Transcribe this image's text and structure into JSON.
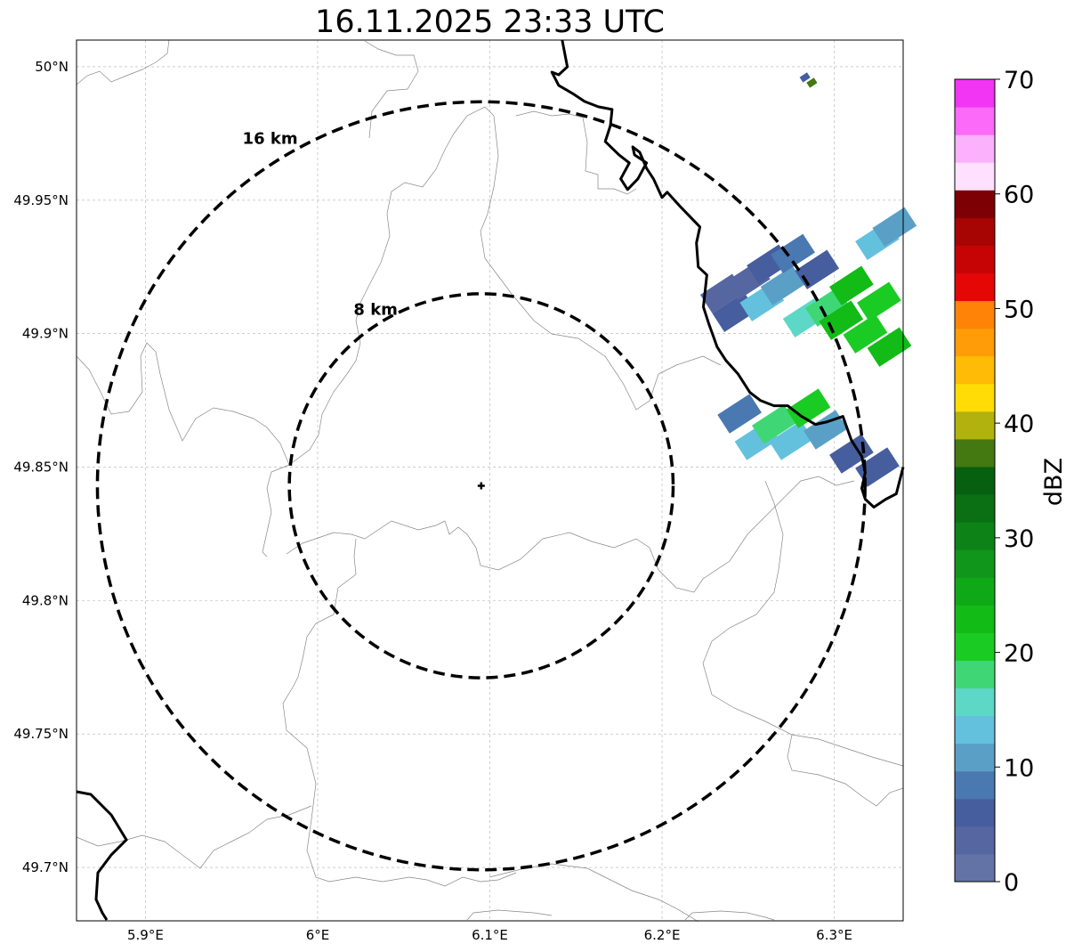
{
  "title": "16.11.2025 23:33 UTC",
  "map": {
    "lon_range": [
      5.86,
      6.34
    ],
    "lat_range": [
      49.68,
      50.01
    ],
    "lon_ticks": [
      {
        "value": 5.9,
        "label": "5.9°E"
      },
      {
        "value": 6.0,
        "label": "6°E"
      },
      {
        "value": 6.1,
        "label": "6.1°E"
      },
      {
        "value": 6.2,
        "label": "6.2°E"
      },
      {
        "value": 6.3,
        "label": "6.3°E"
      }
    ],
    "lat_ticks": [
      {
        "value": 50.0,
        "label": "50°N"
      },
      {
        "value": 49.95,
        "label": "49.95°N"
      },
      {
        "value": 49.9,
        "label": "49.9°N"
      },
      {
        "value": 49.85,
        "label": "49.85°N"
      },
      {
        "value": 49.8,
        "label": "49.8°N"
      },
      {
        "value": 49.75,
        "label": "49.75°N"
      },
      {
        "value": 49.7,
        "label": "49.7°N"
      }
    ],
    "grid": true,
    "radar_site": {
      "lon": 6.095,
      "lat": 49.843
    },
    "range_rings": [
      {
        "radius_km": 8,
        "label": "8 km"
      },
      {
        "radius_km": 16,
        "label": "16 km"
      }
    ],
    "national_border": [
      [
        6.142,
        50.01
      ],
      [
        6.145,
        50.0
      ],
      [
        6.14,
        49.997
      ],
      [
        6.136,
        49.998
      ],
      [
        6.14,
        49.993
      ],
      [
        6.148,
        49.99
      ],
      [
        6.155,
        49.987
      ],
      [
        6.163,
        49.985
      ],
      [
        6.171,
        49.984
      ],
      [
        6.17,
        49.978
      ],
      [
        6.167,
        49.972
      ],
      [
        6.175,
        49.967
      ],
      [
        6.181,
        49.964
      ],
      [
        6.176,
        49.958
      ],
      [
        6.18,
        49.954
      ],
      [
        6.186,
        49.958
      ],
      [
        6.191,
        49.964
      ],
      [
        6.184,
        49.967
      ],
      [
        6.183,
        49.97
      ],
      [
        6.187,
        49.968
      ],
      [
        6.191,
        49.962
      ],
      [
        6.195,
        49.958
      ],
      [
        6.2,
        49.951
      ],
      [
        6.203,
        49.953
      ],
      [
        6.21,
        49.948
      ],
      [
        6.216,
        49.944
      ],
      [
        6.222,
        49.94
      ],
      [
        6.22,
        49.934
      ],
      [
        6.221,
        49.925
      ],
      [
        6.226,
        49.922
      ],
      [
        6.224,
        49.91
      ],
      [
        6.227,
        49.904
      ],
      [
        6.232,
        49.895
      ],
      [
        6.237,
        49.89
      ],
      [
        6.244,
        49.885
      ],
      [
        6.251,
        49.878
      ],
      [
        6.257,
        49.875
      ],
      [
        6.265,
        49.873
      ],
      [
        6.273,
        49.873
      ],
      [
        6.281,
        49.869
      ],
      [
        6.289,
        49.866
      ],
      [
        6.296,
        49.867
      ],
      [
        6.305,
        49.869
      ],
      [
        6.31,
        49.86
      ],
      [
        6.316,
        49.854
      ],
      [
        6.318,
        49.848
      ],
      [
        6.316,
        49.842
      ],
      [
        6.318,
        49.838
      ],
      [
        6.323,
        49.835
      ],
      [
        6.33,
        49.838
      ],
      [
        6.336,
        49.84
      ],
      [
        6.34,
        49.85
      ]
    ],
    "radar_echoes_dbz": [
      {
        "lon": 6.235,
        "lat": 49.915,
        "dbz": 3
      },
      {
        "lon": 6.242,
        "lat": 49.908,
        "dbz": 5
      },
      {
        "lon": 6.25,
        "lat": 49.92,
        "dbz": 4
      },
      {
        "lon": 6.258,
        "lat": 49.912,
        "dbz": 13
      },
      {
        "lon": 6.262,
        "lat": 49.926,
        "dbz": 6
      },
      {
        "lon": 6.27,
        "lat": 49.918,
        "dbz": 12
      },
      {
        "lon": 6.276,
        "lat": 49.93,
        "dbz": 8
      },
      {
        "lon": 6.283,
        "lat": 49.906,
        "dbz": 15
      },
      {
        "lon": 6.29,
        "lat": 49.924,
        "dbz": 5
      },
      {
        "lon": 6.296,
        "lat": 49.91,
        "dbz": 17
      },
      {
        "lon": 6.304,
        "lat": 49.905,
        "dbz": 22
      },
      {
        "lon": 6.31,
        "lat": 49.918,
        "dbz": 23
      },
      {
        "lon": 6.318,
        "lat": 49.9,
        "dbz": 21
      },
      {
        "lon": 6.326,
        "lat": 49.912,
        "dbz": 20
      },
      {
        "lon": 6.332,
        "lat": 49.895,
        "dbz": 24
      },
      {
        "lon": 6.325,
        "lat": 49.935,
        "dbz": 14
      },
      {
        "lon": 6.335,
        "lat": 49.94,
        "dbz": 12
      },
      {
        "lon": 6.245,
        "lat": 49.87,
        "dbz": 8
      },
      {
        "lon": 6.255,
        "lat": 49.86,
        "dbz": 13
      },
      {
        "lon": 6.265,
        "lat": 49.866,
        "dbz": 17
      },
      {
        "lon": 6.275,
        "lat": 49.86,
        "dbz": 14
      },
      {
        "lon": 6.285,
        "lat": 49.872,
        "dbz": 21
      },
      {
        "lon": 6.295,
        "lat": 49.864,
        "dbz": 11
      },
      {
        "lon": 6.31,
        "lat": 49.855,
        "dbz": 6
      },
      {
        "lon": 6.325,
        "lat": 49.85,
        "dbz": 7
      },
      {
        "lon": 6.283,
        "lat": 49.996,
        "dbz": 5
      },
      {
        "lon": 6.287,
        "lat": 49.994,
        "dbz": 37
      }
    ]
  },
  "colorbar": {
    "label": "dBZ",
    "ticks": [
      "0",
      "10",
      "20",
      "30",
      "40",
      "50",
      "60",
      "70"
    ],
    "colors": [
      "#6473a6",
      "#5666a1",
      "#465e9e",
      "#4a79b1",
      "#5aa0c6",
      "#64c1de",
      "#5dd7c6",
      "#3fd775",
      "#1acb23",
      "#12bb16",
      "#0fa918",
      "#10961a",
      "#0d8216",
      "#0a7013",
      "#06600f",
      "#447810",
      "#b1b20d",
      "#ffdc05",
      "#ffbb05",
      "#ff9c07",
      "#fe8306",
      "#e50606",
      "#c60406",
      "#a70404",
      "#7c0004",
      "#ffe0fe",
      "#fcb1fc",
      "#fc6afa",
      "#f234f4"
    ]
  }
}
